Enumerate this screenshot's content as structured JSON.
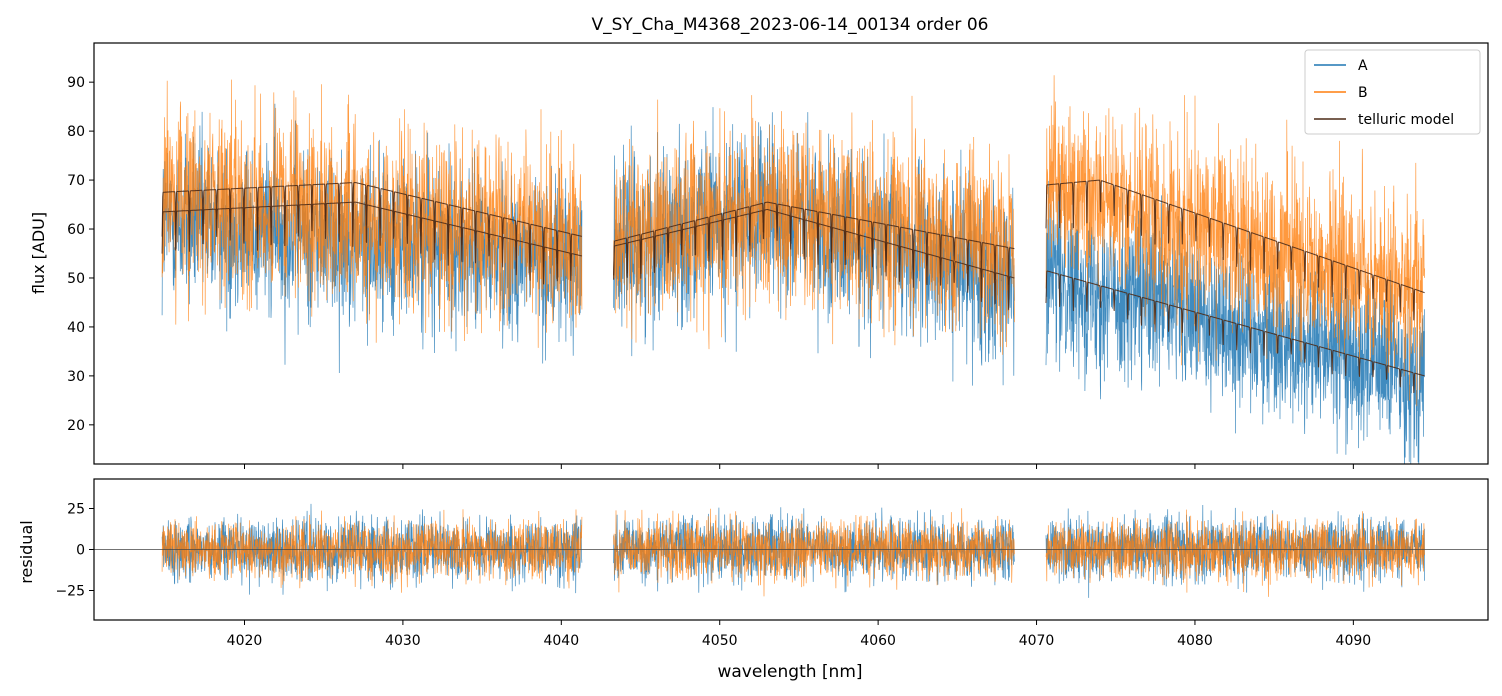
{
  "chart_data": [
    {
      "type": "line",
      "title": "V_SY_Cha_M4368_2023-06-14_00134  order 06",
      "ylabel": "flux [ADU]",
      "xlim": [
        4010.5,
        4098.5
      ],
      "ylim": [
        12,
        98
      ],
      "x_ticks": [
        4020,
        4030,
        4040,
        4050,
        4060,
        4070,
        4080,
        4090
      ],
      "y_ticks": [
        20,
        30,
        40,
        50,
        60,
        70,
        80,
        90
      ],
      "legend_position": "top-right",
      "segments": [
        [
          4014.8,
          4041.3
        ],
        [
          4043.3,
          4068.6
        ],
        [
          4070.6,
          4094.5
        ]
      ],
      "series": [
        {
          "name": "A",
          "color": "#1f77b4",
          "kind": "noisy spectrum",
          "continuum": [
            {
              "x": 4014.8,
              "y": 62
            },
            {
              "x": 4041.3,
              "y": 54
            },
            {
              "x": 4043.3,
              "y": 57
            },
            {
              "x": 4053.0,
              "y": 63
            },
            {
              "x": 4068.6,
              "y": 50
            },
            {
              "x": 4070.6,
              "y": 51
            },
            {
              "x": 4094.5,
              "y": 30
            }
          ],
          "noise_amplitude": 12
        },
        {
          "name": "B",
          "color": "#ff7f0e",
          "kind": "noisy spectrum",
          "continuum": [
            {
              "x": 4014.8,
              "y": 67
            },
            {
              "x": 4041.3,
              "y": 58
            },
            {
              "x": 4043.3,
              "y": 58
            },
            {
              "x": 4053.0,
              "y": 65
            },
            {
              "x": 4068.6,
              "y": 56
            },
            {
              "x": 4070.6,
              "y": 69
            },
            {
              "x": 4094.5,
              "y": 47
            }
          ],
          "noise_amplitude": 13
        },
        {
          "name": "telluric model",
          "color": "#4b2a17",
          "kind": "model",
          "curves": [
            [
              {
                "x": 4014.8,
                "y": 67.5
              },
              {
                "x": 4027.0,
                "y": 69.5
              },
              {
                "x": 4041.3,
                "y": 58.5
              }
            ],
            [
              {
                "x": 4014.8,
                "y": 63.5
              },
              {
                "x": 4027.0,
                "y": 65.5
              },
              {
                "x": 4041.3,
                "y": 54.5
              }
            ],
            [
              {
                "x": 4043.3,
                "y": 57.5
              },
              {
                "x": 4053.0,
                "y": 65.5
              },
              {
                "x": 4068.6,
                "y": 56.0
              }
            ],
            [
              {
                "x": 4043.3,
                "y": 56.5
              },
              {
                "x": 4053.0,
                "y": 64.0
              },
              {
                "x": 4068.6,
                "y": 50.0
              }
            ],
            [
              {
                "x": 4070.6,
                "y": 69.0
              },
              {
                "x": 4074.0,
                "y": 70.0
              },
              {
                "x": 4094.5,
                "y": 47.0
              }
            ],
            [
              {
                "x": 4070.6,
                "y": 51.5
              },
              {
                "x": 4094.5,
                "y": 30.0
              }
            ]
          ],
          "line_spacing_nm": 0.86,
          "line_depth": 0.14
        }
      ]
    },
    {
      "type": "line",
      "xlabel": "wavelength [nm]",
      "ylabel": "residual",
      "xlim": [
        4010.5,
        4098.5
      ],
      "ylim": [
        -43,
        43
      ],
      "x_ticks": [
        4020,
        4030,
        4040,
        4050,
        4060,
        4070,
        4080,
        4090
      ],
      "x_tick_labels": [
        "4020",
        "4030",
        "4040",
        "4050",
        "4060",
        "4070",
        "4080",
        "4090"
      ],
      "y_ticks": [
        25,
        0,
        -25
      ],
      "y_tick_labels": [
        "25",
        "0",
        "−25"
      ],
      "zero_line": 0,
      "series": [
        {
          "name": "A",
          "color": "#1f77b4",
          "noise_amplitude": 18
        },
        {
          "name": "B",
          "color": "#ff7f0e",
          "noise_amplitude": 17
        }
      ]
    }
  ]
}
